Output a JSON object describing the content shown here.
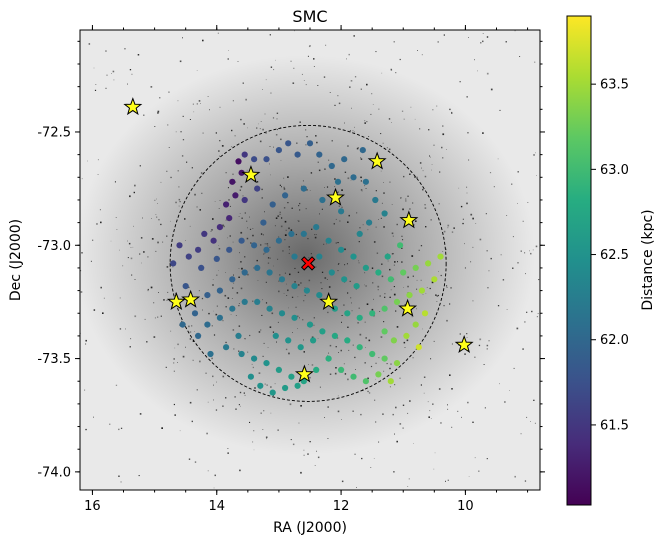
{
  "chart_data": {
    "type": "scatter",
    "title": "SMC",
    "xlabel": "RA (J2000)",
    "ylabel": "Dec (J2000)",
    "xlim": [
      16.2,
      8.8
    ],
    "ylim": [
      -74.08,
      -72.05
    ],
    "xticks": [
      16,
      14,
      12,
      10
    ],
    "yticks": [
      -72.5,
      -73.0,
      -73.5,
      -74.0
    ],
    "xtick_labels": [
      "16",
      "14",
      "12",
      "10"
    ],
    "ytick_labels": [
      "-72.5",
      "-73.0",
      "-73.5",
      "-74.0"
    ],
    "colorbar": {
      "label": "Distance (kpc)",
      "range": [
        61.03,
        63.9
      ],
      "ticks": [
        61.5,
        62.0,
        62.5,
        63.0,
        63.5
      ],
      "tick_labels": [
        "61.5",
        "62.0",
        "62.5",
        "63.0",
        "63.5"
      ],
      "colormap": "viridis"
    },
    "background": "grayscale stellar density image",
    "circle": {
      "center": [
        12.53,
        -73.08
      ],
      "radius_deg": 2.25,
      "style": "dashed"
    },
    "center_marker": {
      "ra": 12.53,
      "dec": -73.08,
      "symbol": "x",
      "color": "#ff0000"
    },
    "star_markers": [
      {
        "ra": 15.35,
        "dec": -72.39
      },
      {
        "ra": 13.45,
        "dec": -72.69
      },
      {
        "ra": 11.42,
        "dec": -72.63
      },
      {
        "ra": 12.09,
        "dec": -72.79
      },
      {
        "ra": 10.91,
        "dec": -72.89
      },
      {
        "ra": 14.65,
        "dec": -73.25
      },
      {
        "ra": 14.42,
        "dec": -73.24
      },
      {
        "ra": 12.2,
        "dec": -73.25
      },
      {
        "ra": 10.93,
        "dec": -73.28
      },
      {
        "ra": 10.02,
        "dec": -73.44
      },
      {
        "ra": 12.59,
        "dec": -73.57
      }
    ],
    "points": [
      [
        13.65,
        -72.63,
        61.15
      ],
      [
        13.6,
        -72.68,
        61.2
      ],
      [
        13.75,
        -72.72,
        61.2
      ],
      [
        13.7,
        -72.78,
        61.25
      ],
      [
        13.85,
        -72.82,
        61.3
      ],
      [
        13.8,
        -72.88,
        61.35
      ],
      [
        13.55,
        -72.8,
        61.5
      ],
      [
        13.35,
        -72.75,
        61.6
      ],
      [
        13.2,
        -72.62,
        61.75
      ],
      [
        13.0,
        -72.58,
        61.8
      ],
      [
        12.85,
        -72.55,
        61.8
      ],
      [
        12.7,
        -72.6,
        61.85
      ],
      [
        12.5,
        -72.55,
        61.9
      ],
      [
        12.35,
        -72.6,
        61.95
      ],
      [
        12.15,
        -72.65,
        62.0
      ],
      [
        11.95,
        -72.62,
        62.0
      ],
      [
        11.8,
        -72.7,
        62.05
      ],
      [
        11.6,
        -72.72,
        62.1
      ],
      [
        11.45,
        -72.8,
        62.2
      ],
      [
        11.3,
        -72.86,
        62.3
      ],
      [
        11.55,
        -72.9,
        62.25
      ],
      [
        11.7,
        -72.95,
        62.35
      ],
      [
        12.0,
        -72.85,
        62.2
      ],
      [
        12.3,
        -72.8,
        62.1
      ],
      [
        12.6,
        -72.75,
        62.05
      ],
      [
        12.9,
        -72.78,
        61.95
      ],
      [
        13.1,
        -72.82,
        61.9
      ],
      [
        13.25,
        -72.9,
        61.9
      ],
      [
        13.95,
        -72.92,
        61.4
      ],
      [
        14.05,
        -72.98,
        61.45
      ],
      [
        14.2,
        -72.95,
        61.5
      ],
      [
        14.3,
        -73.02,
        61.55
      ],
      [
        14.45,
        -73.05,
        61.6
      ],
      [
        14.6,
        -73.0,
        61.55
      ],
      [
        14.7,
        -73.08,
        61.65
      ],
      [
        14.25,
        -73.1,
        61.75
      ],
      [
        14.0,
        -73.06,
        61.8
      ],
      [
        13.8,
        -73.02,
        61.8
      ],
      [
        13.6,
        -72.98,
        61.85
      ],
      [
        13.4,
        -73.0,
        61.95
      ],
      [
        13.2,
        -73.02,
        62.0
      ],
      [
        13.0,
        -72.98,
        62.05
      ],
      [
        12.8,
        -72.95,
        62.1
      ],
      [
        12.6,
        -72.95,
        62.15
      ],
      [
        12.4,
        -72.92,
        62.2
      ],
      [
        12.2,
        -72.98,
        62.3
      ],
      [
        12.0,
        -73.02,
        62.4
      ],
      [
        11.8,
        -73.05,
        62.5
      ],
      [
        11.6,
        -73.1,
        62.6
      ],
      [
        11.4,
        -73.12,
        62.8
      ],
      [
        11.2,
        -73.15,
        63.0
      ],
      [
        11.0,
        -73.12,
        63.2
      ],
      [
        10.8,
        -73.1,
        63.3
      ],
      [
        10.6,
        -73.08,
        63.45
      ],
      [
        10.4,
        -73.05,
        63.5
      ],
      [
        10.5,
        -73.15,
        63.55
      ],
      [
        10.7,
        -73.2,
        63.5
      ],
      [
        10.9,
        -73.22,
        63.4
      ],
      [
        11.1,
        -73.25,
        63.3
      ],
      [
        11.3,
        -73.28,
        63.1
      ],
      [
        11.5,
        -73.3,
        62.9
      ],
      [
        11.7,
        -73.32,
        62.8
      ],
      [
        11.9,
        -73.3,
        62.7
      ],
      [
        12.1,
        -73.28,
        62.6
      ],
      [
        12.35,
        -73.22,
        62.4
      ],
      [
        12.55,
        -73.2,
        62.35
      ],
      [
        12.75,
        -73.18,
        62.3
      ],
      [
        12.95,
        -73.15,
        62.2
      ],
      [
        13.15,
        -73.12,
        62.15
      ],
      [
        13.35,
        -73.1,
        62.05
      ],
      [
        13.55,
        -73.12,
        62.0
      ],
      [
        13.75,
        -73.15,
        61.95
      ],
      [
        13.95,
        -73.2,
        61.95
      ],
      [
        14.15,
        -73.22,
        61.9
      ],
      [
        14.35,
        -73.3,
        61.95
      ],
      [
        14.15,
        -73.35,
        62.05
      ],
      [
        13.95,
        -73.32,
        62.1
      ],
      [
        13.75,
        -73.28,
        62.15
      ],
      [
        13.55,
        -73.25,
        62.2
      ],
      [
        13.35,
        -73.25,
        62.25
      ],
      [
        13.15,
        -73.28,
        62.3
      ],
      [
        12.95,
        -73.3,
        62.4
      ],
      [
        12.75,
        -73.32,
        62.45
      ],
      [
        12.5,
        -73.35,
        62.55
      ],
      [
        12.3,
        -73.38,
        62.65
      ],
      [
        12.1,
        -73.4,
        62.75
      ],
      [
        11.9,
        -73.42,
        62.8
      ],
      [
        11.7,
        -73.45,
        62.9
      ],
      [
        11.5,
        -73.48,
        63.0
      ],
      [
        11.3,
        -73.5,
        63.2
      ],
      [
        11.1,
        -73.52,
        63.4
      ],
      [
        10.95,
        -73.4,
        63.5
      ],
      [
        10.8,
        -73.35,
        63.45
      ],
      [
        10.65,
        -73.3,
        63.6
      ],
      [
        11.15,
        -73.42,
        63.35
      ],
      [
        11.3,
        -73.38,
        63.2
      ],
      [
        13.85,
        -73.45,
        62.2
      ],
      [
        13.6,
        -73.48,
        62.3
      ],
      [
        13.4,
        -73.5,
        62.4
      ],
      [
        13.2,
        -73.52,
        62.5
      ],
      [
        13.0,
        -73.55,
        62.6
      ],
      [
        12.8,
        -73.58,
        62.65
      ],
      [
        12.6,
        -73.6,
        62.7
      ],
      [
        12.4,
        -73.55,
        62.8
      ],
      [
        12.2,
        -73.5,
        62.85
      ],
      [
        12.0,
        -73.55,
        62.95
      ],
      [
        11.8,
        -73.58,
        63.0
      ],
      [
        11.6,
        -73.6,
        63.1
      ],
      [
        11.4,
        -73.57,
        63.3
      ],
      [
        11.2,
        -73.6,
        63.5
      ],
      [
        13.3,
        -73.62,
        62.5
      ],
      [
        13.1,
        -73.65,
        62.55
      ],
      [
        12.9,
        -73.63,
        62.6
      ],
      [
        12.7,
        -73.62,
        62.65
      ],
      [
        13.45,
        -73.58,
        62.45
      ],
      [
        13.65,
        -73.4,
        62.25
      ],
      [
        14.1,
        -73.48,
        62.1
      ],
      [
        14.3,
        -73.4,
        62.0
      ],
      [
        12.45,
        -73.42,
        62.6
      ],
      [
        12.65,
        -73.45,
        62.55
      ],
      [
        12.85,
        -73.42,
        62.5
      ],
      [
        13.05,
        -73.4,
        62.45
      ],
      [
        11.25,
        -73.05,
        62.7
      ],
      [
        11.05,
        -73.0,
        63.0
      ],
      [
        12.15,
        -73.12,
        62.4
      ],
      [
        11.95,
        -73.15,
        62.5
      ],
      [
        11.75,
        -73.18,
        62.6
      ],
      [
        13.4,
        -72.62,
        61.7
      ],
      [
        13.55,
        -72.6,
        61.5
      ],
      [
        12.05,
        -72.72,
        62.1
      ],
      [
        11.65,
        -72.58,
        62.0
      ],
      [
        12.75,
        -73.05,
        62.2
      ],
      [
        12.35,
        -73.05,
        62.3
      ],
      [
        14.5,
        -73.18,
        61.8
      ],
      [
        14.55,
        -73.35,
        62.0
      ],
      [
        10.75,
        -73.45,
        63.7
      ]
    ]
  }
}
